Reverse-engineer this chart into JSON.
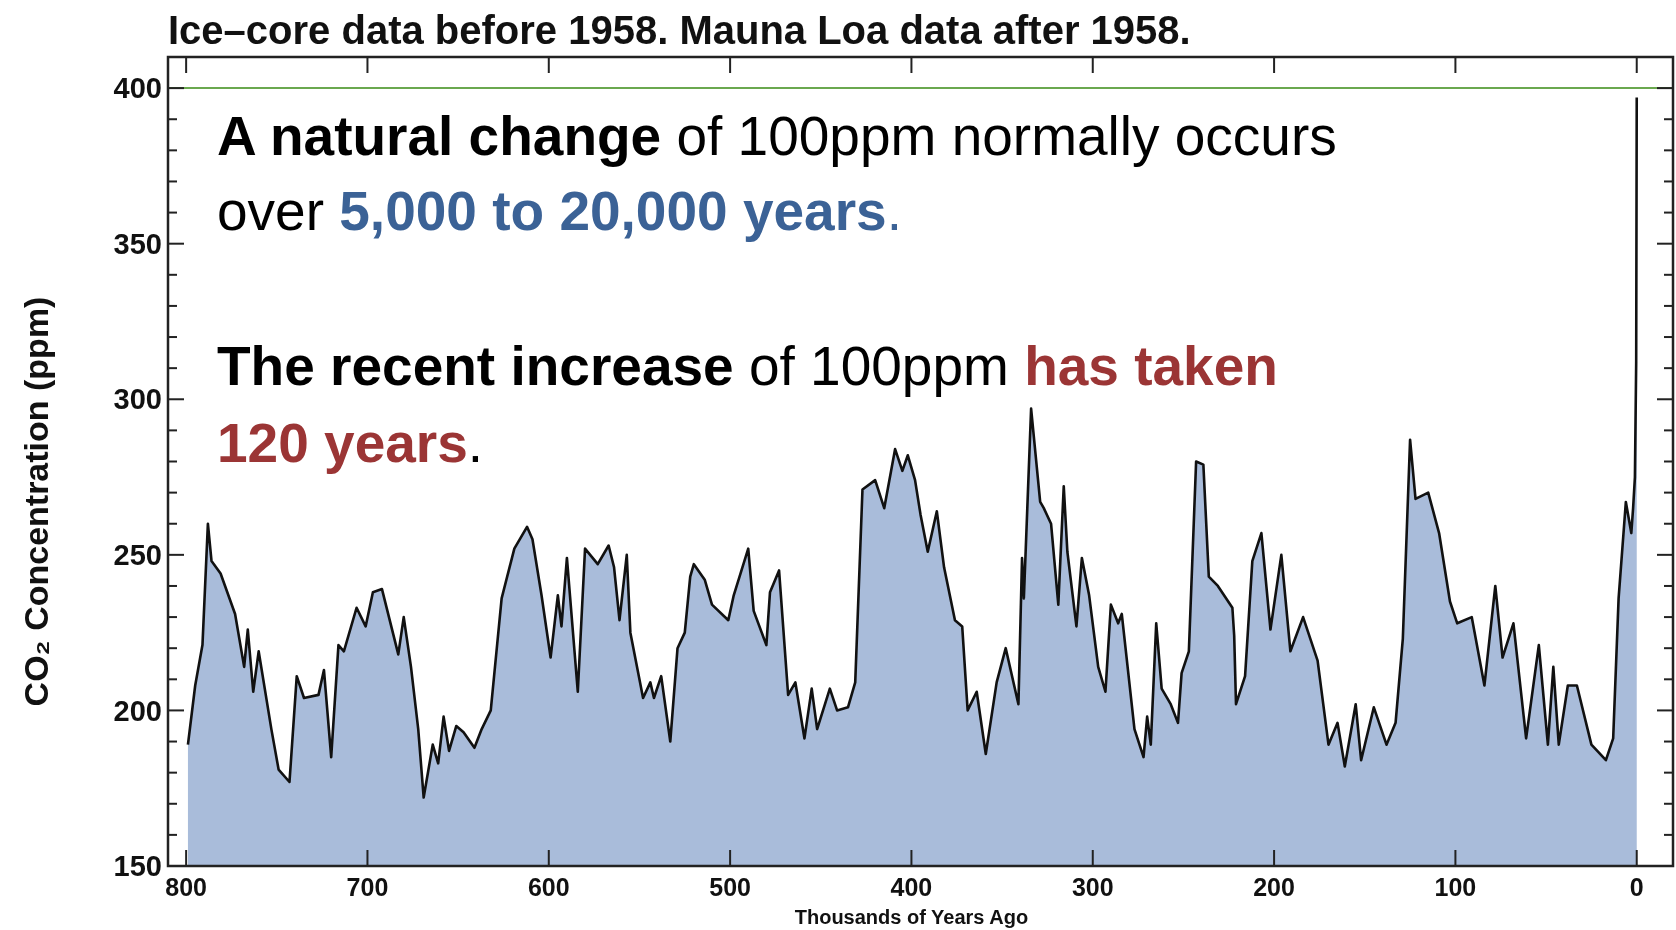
{
  "chart_data": {
    "type": "area",
    "title": "Ice–core data before 1958. Mauna Loa data after 1958.",
    "xlabel": "Thousands of Years Ago",
    "ylabel": "CO₂ Concentration (ppm)",
    "xlim": [
      810,
      -20
    ],
    "xticks": [
      800,
      700,
      600,
      500,
      400,
      300,
      200,
      100,
      0
    ],
    "ylim": [
      150,
      410
    ],
    "yticks": [
      150,
      200,
      250,
      300,
      350,
      400
    ],
    "grid": false,
    "ref_lines": [
      {
        "axis": "y",
        "value": 400,
        "color": "#6aa84f"
      }
    ],
    "annotations": [
      "A natural change",
      " of 100ppm normally occurs",
      "over ",
      "5,000 to 20,000 years",
      ".",
      "The recent increase",
      " of 100ppm ",
      "has taken",
      "120 years",
      "."
    ],
    "series": [
      {
        "color": "#a9bcda",
        "x": [
          799,
          795,
          791,
          788,
          786,
          781,
          773,
          768,
          766,
          763,
          760,
          753,
          749,
          743,
          739,
          735,
          727,
          724,
          720,
          716,
          713,
          706,
          701,
          697,
          692,
          683,
          680,
          676,
          672,
          669,
          664,
          661,
          658,
          655,
          651,
          647,
          641,
          637,
          632,
          626,
          619,
          612,
          609,
          604,
          599,
          595,
          593,
          590,
          584,
          580,
          573,
          567,
          564,
          561,
          557,
          555,
          548,
          544,
          542,
          538,
          533,
          529,
          525,
          522,
          520,
          514,
          510,
          501,
          498,
          490,
          487,
          480,
          478,
          473,
          468,
          464,
          459,
          455,
          452,
          445,
          441,
          435,
          431,
          427,
          420,
          415,
          409,
          405,
          402,
          398,
          395,
          391,
          386,
          382,
          376,
          372,
          369,
          364,
          359,
          353,
          348,
          341,
          339,
          338,
          334,
          329,
          327,
          323,
          319,
          316,
          314,
          309,
          306,
          302,
          297,
          293,
          290,
          286,
          284,
          277,
          272,
          270,
          268,
          265,
          262,
          257,
          253,
          251,
          247,
          243,
          239,
          236,
          231,
          223,
          222,
          221,
          216,
          212,
          207,
          202,
          196,
          191,
          184,
          176,
          170,
          165,
          161,
          155,
          152,
          145,
          138,
          133,
          129,
          125,
          122,
          115,
          109,
          103,
          99,
          91,
          84,
          78,
          74,
          68,
          61,
          54,
          49,
          46,
          43,
          38,
          33,
          25,
          17,
          13,
          10,
          6,
          3,
          2,
          1,
          0.3,
          0
        ],
        "values": [
          189,
          208,
          221,
          260,
          248,
          244,
          231,
          214,
          226,
          206,
          219,
          194,
          181,
          177,
          211,
          204,
          205,
          213,
          185,
          221,
          219,
          233,
          227,
          238,
          239,
          218,
          230,
          214,
          194,
          172,
          189,
          183,
          198,
          187,
          195,
          193,
          188,
          194,
          200,
          236,
          252,
          259,
          255,
          237,
          217,
          237,
          227,
          249,
          206,
          252,
          247,
          253,
          246,
          229,
          250,
          225,
          204,
          209,
          204,
          211,
          190,
          220,
          225,
          243,
          247,
          242,
          234,
          229,
          237,
          252,
          232,
          221,
          238,
          245,
          205,
          209,
          191,
          207,
          194,
          207,
          200,
          201,
          209,
          271,
          274,
          265,
          284,
          277,
          282,
          274,
          263,
          251,
          264,
          246,
          229,
          227,
          200,
          206,
          186,
          209,
          220,
          202,
          249,
          236,
          297,
          267,
          265,
          260,
          234,
          272,
          251,
          227,
          249,
          237,
          214,
          206,
          234,
          228,
          231,
          194,
          185,
          198,
          189,
          228,
          207,
          202,
          196,
          212,
          219,
          280,
          279,
          243,
          240,
          233,
          224,
          202,
          211,
          248,
          257,
          226,
          250,
          219,
          230,
          216,
          189,
          196,
          182,
          202,
          184,
          201,
          189,
          196,
          223,
          287,
          268,
          270,
          257,
          235,
          228,
          230,
          208,
          240,
          217,
          228,
          191,
          221,
          189,
          214,
          189,
          208,
          208,
          189,
          184,
          191,
          236,
          267,
          257,
          265,
          275,
          312,
          397
        ]
      }
    ]
  }
}
